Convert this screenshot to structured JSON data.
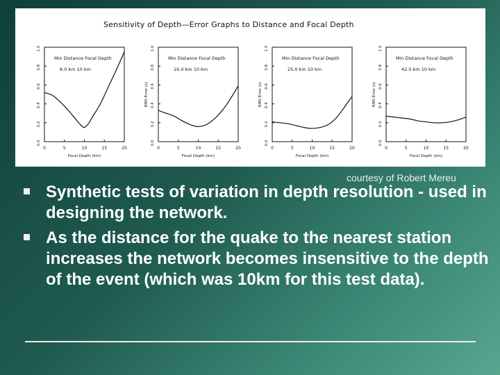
{
  "figure": {
    "title": "Sensitivity of Depth—Error Graphs to Distance and Focal Depth",
    "credit": "courtesy of Robert Mereu"
  },
  "bullets": [
    "Synthetic tests of variation in depth resolution - used in designing the network.",
    "As the distance for the quake to the nearest station increases the network becomes insensitive to the depth of the event (which was 10km for this test data)."
  ],
  "chart_data": [
    {
      "type": "line",
      "annotation": {
        "header": "Min Distance   Focal Depth",
        "values": "8.0 km      10 km"
      },
      "xlabel": "Focal Depth (km)",
      "ylabel": "",
      "xlim": [
        0,
        20
      ],
      "ylim": [
        0,
        1.0
      ],
      "xticks": [
        "0",
        "5",
        "10",
        "15",
        "20"
      ],
      "yticks": [
        "0.0",
        "0.2",
        "0.4",
        "0.6",
        "0.8",
        "1.0"
      ],
      "x": [
        0,
        2,
        4,
        6,
        8,
        9,
        10,
        11,
        12,
        14,
        16,
        18,
        20
      ],
      "y": [
        0.52,
        0.49,
        0.42,
        0.33,
        0.23,
        0.18,
        0.15,
        0.19,
        0.26,
        0.4,
        0.58,
        0.76,
        0.95
      ]
    },
    {
      "type": "line",
      "annotation": {
        "header": "Min Distance   Focal Depth",
        "values": "16.0 km     10 km"
      },
      "xlabel": "Focal Depth (km)",
      "ylabel": "RMS Error (s)",
      "xlim": [
        0,
        20
      ],
      "ylim": [
        0,
        1.0
      ],
      "xticks": [
        "0",
        "5",
        "10",
        "15",
        "20"
      ],
      "yticks": [
        "0.0",
        "0.2",
        "0.4",
        "0.6",
        "0.8",
        "1.0"
      ],
      "x": [
        0,
        2,
        4,
        6,
        8,
        10,
        12,
        14,
        16,
        18,
        20
      ],
      "y": [
        0.33,
        0.3,
        0.27,
        0.22,
        0.18,
        0.16,
        0.18,
        0.24,
        0.33,
        0.45,
        0.59
      ]
    },
    {
      "type": "line",
      "annotation": {
        "header": "Min Distance   Focal Depth",
        "values": "25.0 km     10 km"
      },
      "xlabel": "Focal Depth (km)",
      "ylabel": "RMS Error (s)",
      "xlim": [
        0,
        20
      ],
      "ylim": [
        0,
        1.0
      ],
      "xticks": [
        "0",
        "5",
        "10",
        "15",
        "20"
      ],
      "yticks": [
        "0.0",
        "0.2",
        "0.4",
        "0.6",
        "0.8",
        "1.0"
      ],
      "x": [
        0,
        2,
        4,
        6,
        8,
        10,
        12,
        14,
        16,
        18,
        20
      ],
      "y": [
        0.21,
        0.2,
        0.19,
        0.17,
        0.15,
        0.14,
        0.15,
        0.18,
        0.25,
        0.36,
        0.48
      ]
    },
    {
      "type": "line",
      "annotation": {
        "header": "Min Distance   Focal Depth",
        "values": "42.0 km     10 km"
      },
      "xlabel": "Focal Depth (km)",
      "ylabel": "RMS Error (s)",
      "xlim": [
        0,
        20
      ],
      "ylim": [
        0,
        1.0
      ],
      "xticks": [
        "0",
        "5",
        "10",
        "15",
        "20"
      ],
      "yticks": [
        "0.0",
        "0.2",
        "0.4",
        "0.6",
        "0.8",
        "1.0"
      ],
      "x": [
        0,
        2,
        4,
        6,
        8,
        10,
        12,
        14,
        16,
        18,
        20
      ],
      "y": [
        0.27,
        0.26,
        0.25,
        0.24,
        0.22,
        0.21,
        0.2,
        0.2,
        0.21,
        0.23,
        0.26
      ]
    }
  ]
}
